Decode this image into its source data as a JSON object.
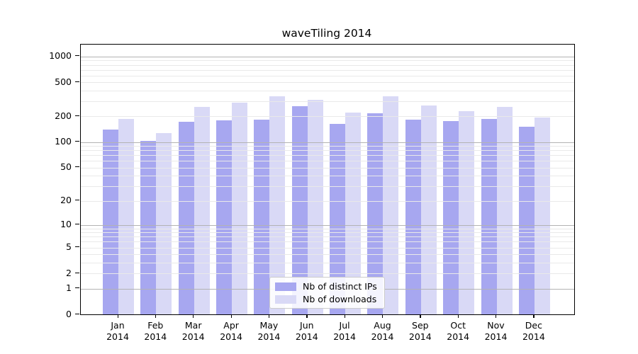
{
  "title": "waveTiling 2014",
  "legend": {
    "items": [
      {
        "label": "Nb of distinct IPs",
        "color": "#a7a7f0"
      },
      {
        "label": "Nb of downloads",
        "color": "#d9d9f6"
      }
    ]
  },
  "chart_data": {
    "type": "bar",
    "title": "waveTiling 2014",
    "categories": [
      "Jan",
      "Feb",
      "Mar",
      "Apr",
      "May",
      "Jun",
      "Jul",
      "Aug",
      "Sep",
      "Oct",
      "Nov",
      "Dec"
    ],
    "year": "2014",
    "series": [
      {
        "name": "Nb of distinct IPs",
        "color": "#a7a7f0",
        "values": [
          141,
          104,
          172,
          180,
          184,
          262,
          162,
          219,
          184,
          178,
          187,
          150
        ]
      },
      {
        "name": "Nb of downloads",
        "color": "#d9d9f6",
        "values": [
          187,
          128,
          256,
          287,
          345,
          310,
          223,
          343,
          270,
          230,
          258,
          193
        ]
      }
    ],
    "y_axis": {
      "scale": "log10(value+1)",
      "ticks": [
        1000,
        500,
        200,
        100,
        50,
        20,
        10,
        5,
        2,
        1,
        0
      ],
      "top_value": 1373,
      "major_gridlines": [
        1,
        10,
        100,
        1000
      ],
      "minor_gridlines": [
        2,
        3,
        4,
        5,
        6,
        7,
        8,
        9,
        20,
        30,
        40,
        50,
        60,
        70,
        80,
        90,
        200,
        300,
        400,
        500,
        600,
        700,
        800,
        900
      ]
    },
    "grid": true,
    "gridlines_over_bars": true,
    "legend_position": "inside-bottom-center",
    "colors": {
      "bar_dark": "#a7a7f0",
      "bar_light": "#d9d9f6",
      "grid_major": "#b3b3b3",
      "grid_minor": "#e9e9e9",
      "axis": "#000000"
    }
  }
}
